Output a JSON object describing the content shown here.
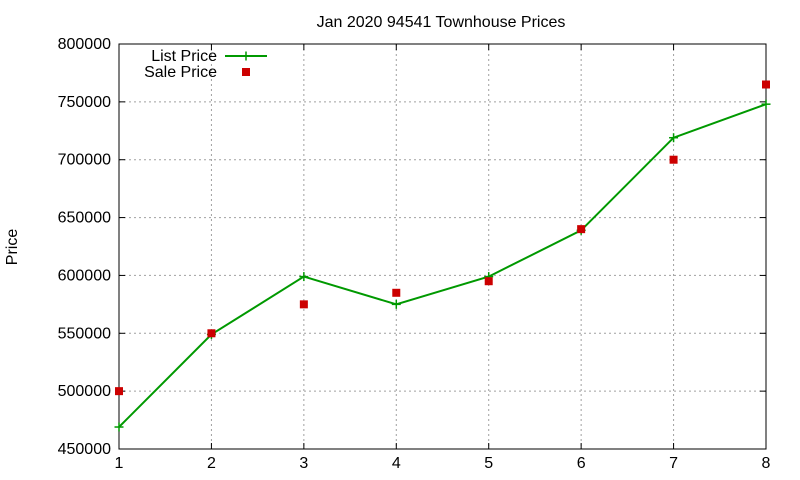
{
  "chart_data": {
    "type": "line",
    "title": "Jan 2020 94541 Townhouse Prices",
    "xlabel": "",
    "ylabel": "Price",
    "x": [
      1,
      2,
      3,
      4,
      5,
      6,
      7,
      8
    ],
    "xlim": [
      1,
      8
    ],
    "ylim": [
      450000,
      800000
    ],
    "xticks": [
      1,
      2,
      3,
      4,
      5,
      6,
      7,
      8
    ],
    "yticks": [
      450000,
      500000,
      550000,
      600000,
      650000,
      700000,
      750000,
      800000
    ],
    "grid": true,
    "legend_position": "top-left",
    "series": [
      {
        "name": "List Price",
        "style": "line-points",
        "marker": "plus",
        "color": "#009900",
        "values": [
          469000,
          549000,
          599000,
          575000,
          599000,
          639000,
          719000,
          748000
        ]
      },
      {
        "name": "Sale Price",
        "style": "points",
        "marker": "square",
        "color": "#cc0000",
        "values": [
          500000,
          550000,
          575000,
          585000,
          595000,
          640000,
          700000,
          765000
        ]
      }
    ]
  }
}
